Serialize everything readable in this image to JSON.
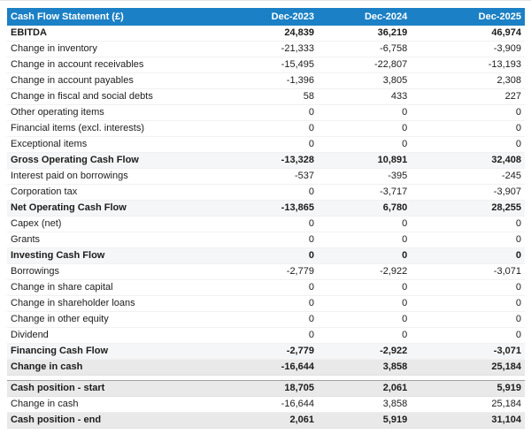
{
  "table": {
    "title": "Cash Flow Statement (£)",
    "columns": [
      "Dec-2023",
      "Dec-2024",
      "Dec-2025"
    ],
    "rows": [
      {
        "label": "EBITDA",
        "values": [
          "24,839",
          "36,219",
          "46,974"
        ],
        "style": "bold"
      },
      {
        "label": "Change in inventory",
        "values": [
          "-21,333",
          "-6,758",
          "-3,909"
        ],
        "style": "normal"
      },
      {
        "label": "Change in account receivables",
        "values": [
          "-15,495",
          "-22,807",
          "-13,193"
        ],
        "style": "normal"
      },
      {
        "label": "Change in account payables",
        "values": [
          "-1,396",
          "3,805",
          "2,308"
        ],
        "style": "normal"
      },
      {
        "label": "Change in fiscal and social debts",
        "values": [
          "58",
          "433",
          "227"
        ],
        "style": "normal"
      },
      {
        "label": "Other operating items",
        "values": [
          "0",
          "0",
          "0"
        ],
        "style": "normal"
      },
      {
        "label": "Financial items (excl. interests)",
        "values": [
          "0",
          "0",
          "0"
        ],
        "style": "normal"
      },
      {
        "label": "Exceptional items",
        "values": [
          "0",
          "0",
          "0"
        ],
        "style": "normal"
      },
      {
        "label": "Gross Operating Cash Flow",
        "values": [
          "-13,328",
          "10,891",
          "32,408"
        ],
        "style": "subtotal"
      },
      {
        "label": "Interest paid on borrowings",
        "values": [
          "-537",
          "-395",
          "-245"
        ],
        "style": "normal"
      },
      {
        "label": "Corporation tax",
        "values": [
          "0",
          "-3,717",
          "-3,907"
        ],
        "style": "normal"
      },
      {
        "label": "Net Operating Cash Flow",
        "values": [
          "-13,865",
          "6,780",
          "28,255"
        ],
        "style": "subtotal"
      },
      {
        "label": "Capex (net)",
        "values": [
          "0",
          "0",
          "0"
        ],
        "style": "normal"
      },
      {
        "label": "Grants",
        "values": [
          "0",
          "0",
          "0"
        ],
        "style": "normal"
      },
      {
        "label": "Investing Cash Flow",
        "values": [
          "0",
          "0",
          "0"
        ],
        "style": "subtotal"
      },
      {
        "label": "Borrowings",
        "values": [
          "-2,779",
          "-2,922",
          "-3,071"
        ],
        "style": "normal"
      },
      {
        "label": "Change in share capital",
        "values": [
          "0",
          "0",
          "0"
        ],
        "style": "normal"
      },
      {
        "label": "Change in shareholder loans",
        "values": [
          "0",
          "0",
          "0"
        ],
        "style": "normal"
      },
      {
        "label": "Change in other equity",
        "values": [
          "0",
          "0",
          "0"
        ],
        "style": "normal"
      },
      {
        "label": "Dividend",
        "values": [
          "0",
          "0",
          "0"
        ],
        "style": "normal"
      },
      {
        "label": "Financing Cash Flow",
        "values": [
          "-2,779",
          "-2,922",
          "-3,071"
        ],
        "style": "subtotal"
      },
      {
        "label": "Change in cash",
        "values": [
          "-16,644",
          "3,858",
          "25,184"
        ],
        "style": "highlight"
      },
      {
        "label": "Cash position - start",
        "values": [
          "18,705",
          "2,061",
          "5,919"
        ],
        "style": "highlight",
        "spacer_before": true
      },
      {
        "label": "Change in cash",
        "values": [
          "-16,644",
          "3,858",
          "25,184"
        ],
        "style": "normal"
      },
      {
        "label": "Cash position - end",
        "values": [
          "2,061",
          "5,919",
          "31,104"
        ],
        "style": "highlight"
      }
    ]
  },
  "colors": {
    "header_bg": "#1b80c5",
    "header_text": "#ffffff",
    "subtotal_row_bg": "#f5f6f7",
    "highlight_row_bg": "#e9e9e9",
    "emphasis_border": "#a0a0a0",
    "body_text": "#1c1c1c"
  }
}
